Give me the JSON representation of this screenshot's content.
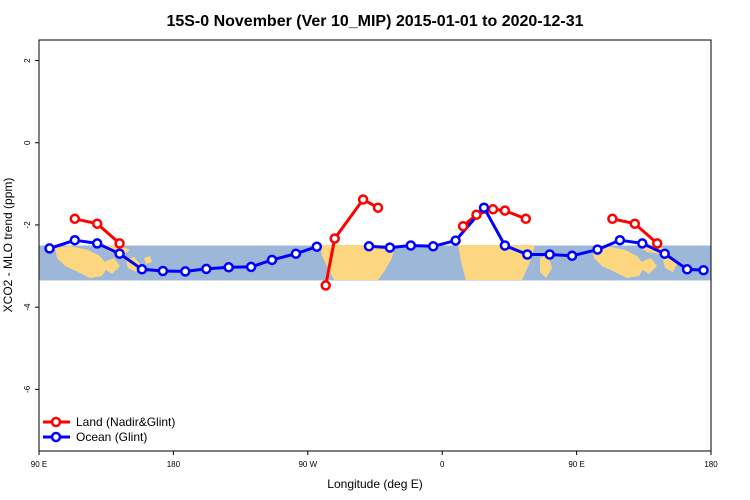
{
  "chart_data": {
    "type": "line",
    "title": "15S-0 November (Ver 10_MIP)   2015-01-01 to 2020-12-31",
    "xlabel": "Longitude (deg E)",
    "ylabel": "XCO2 - MLO trend (ppm)",
    "xlim": [
      90,
      540
    ],
    "ylim": [
      -7.5,
      2.5
    ],
    "x_ticks": [
      90,
      180,
      270,
      360,
      450,
      540
    ],
    "x_tick_labels": [
      "90 E",
      "180",
      "90 W",
      "0",
      "90 E",
      "180"
    ],
    "y_ticks": [
      2,
      0,
      -2,
      -4,
      -6
    ],
    "y_tick_labels": [
      "2",
      "0",
      "-2",
      "-4",
      "-6"
    ],
    "band": {
      "y_min": -3.35,
      "y_max": -2.5,
      "color": "#9db7d9",
      "land_color": "#fcd77f"
    },
    "legend_position": "bottom-left",
    "series": [
      {
        "name": "Land (Nadir&Glint)",
        "color": "#ff0000",
        "segments": [
          [
            [
              114,
              -1.85
            ],
            [
              129,
              -1.97
            ],
            [
              144,
              -2.45
            ]
          ],
          [
            [
              282,
              -3.47
            ],
            [
              288,
              -2.33
            ],
            [
              307,
              -1.38
            ],
            [
              317,
              -1.58
            ]
          ],
          [
            [
              374,
              -2.03
            ],
            [
              383,
              -1.75
            ],
            [
              394,
              -1.62
            ],
            [
              402,
              -1.65
            ],
            [
              416,
              -1.85
            ]
          ],
          [
            [
              474,
              -1.85
            ],
            [
              489,
              -1.97
            ],
            [
              504,
              -2.45
            ]
          ]
        ]
      },
      {
        "name": "Ocean (Glint)",
        "color": "#0000ff",
        "segments": [
          [
            [
              97,
              -2.57
            ],
            [
              114,
              -2.37
            ],
            [
              129,
              -2.45
            ],
            [
              144,
              -2.7
            ],
            [
              159,
              -3.08
            ],
            [
              173,
              -3.12
            ],
            [
              188,
              -3.13
            ],
            [
              202,
              -3.07
            ],
            [
              217,
              -3.03
            ],
            [
              232,
              -3.02
            ],
            [
              246,
              -2.85
            ],
            [
              262,
              -2.7
            ],
            [
              276,
              -2.53
            ]
          ],
          [
            [
              311,
              -2.52
            ],
            [
              325,
              -2.55
            ],
            [
              339,
              -2.5
            ],
            [
              354,
              -2.52
            ],
            [
              369,
              -2.38
            ],
            [
              388,
              -1.58
            ],
            [
              402,
              -2.5
            ],
            [
              417,
              -2.72
            ],
            [
              432,
              -2.72
            ],
            [
              447,
              -2.75
            ],
            [
              464,
              -2.6
            ],
            [
              479,
              -2.37
            ],
            [
              494,
              -2.45
            ],
            [
              509,
              -2.7
            ],
            [
              524,
              -3.08
            ],
            [
              535,
              -3.1
            ]
          ]
        ]
      }
    ]
  }
}
